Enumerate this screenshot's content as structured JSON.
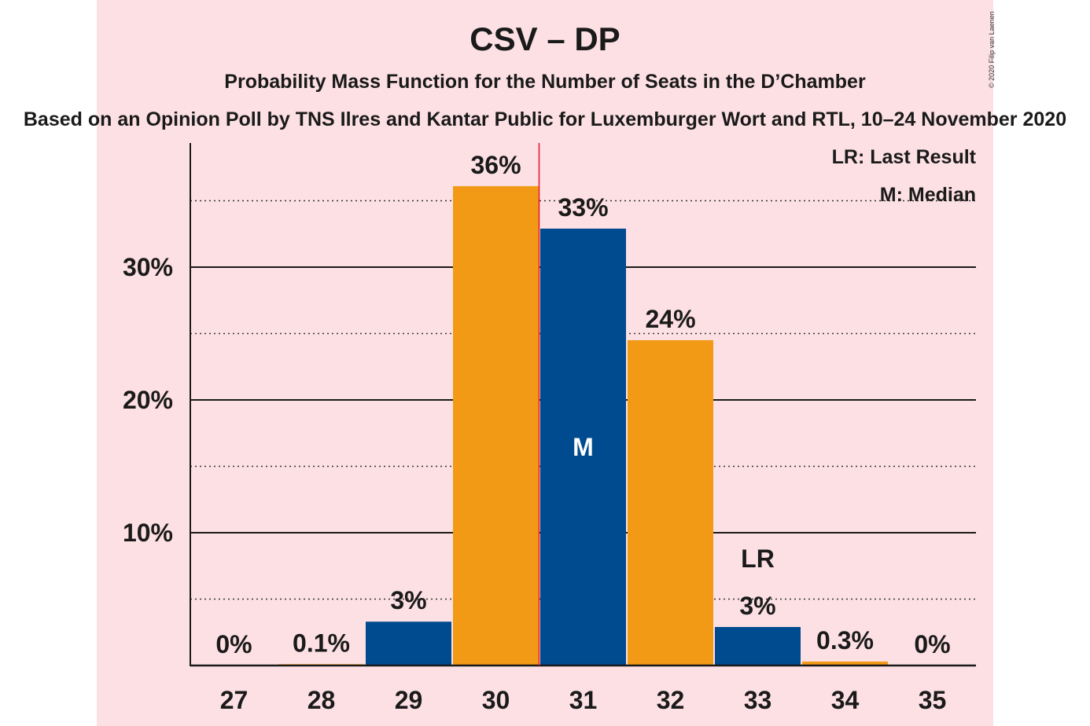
{
  "title": "CSV – DP",
  "subtitle": "Probability Mass Function for the Number of Seats in the D’Chamber",
  "source": "Based on an Opinion Poll by TNS Ilres and Kantar Public for Luxemburger Wort and RTL, 10–24 November 2020",
  "copyright": "© 2020 Filip van Laenen",
  "legend": {
    "last_result": "LR: Last Result",
    "median": "M: Median"
  },
  "colors": {
    "background_band": "#fde0e4",
    "orange": "#f29a16",
    "blue": "#004a8f",
    "median_line": "#e8112d",
    "text": "#1a1a1a"
  },
  "chart_data": {
    "type": "bar",
    "categories": [
      "27",
      "28",
      "29",
      "30",
      "31",
      "32",
      "33",
      "34",
      "35"
    ],
    "values": [
      0,
      0.1,
      3.3,
      36.1,
      32.9,
      24.5,
      2.9,
      0.3,
      0
    ],
    "value_labels": [
      "0%",
      "0.1%",
      "3%",
      "36%",
      "33%",
      "24%",
      "3%",
      "0.3%",
      "0%"
    ],
    "bar_colors": [
      "orange",
      "orange",
      "blue",
      "orange",
      "blue",
      "orange",
      "blue",
      "orange",
      "blue"
    ],
    "ylim": [
      0,
      38
    ],
    "yticks": [
      10,
      20,
      30
    ],
    "ytick_labels": [
      "10%",
      "20%",
      "30%"
    ],
    "minor_gridlines": [
      5,
      15,
      25,
      35
    ],
    "median_seat": "31",
    "median_label": "M",
    "last_result_seat": "33",
    "last_result_label": "LR",
    "xlabel": "",
    "ylabel": ""
  }
}
